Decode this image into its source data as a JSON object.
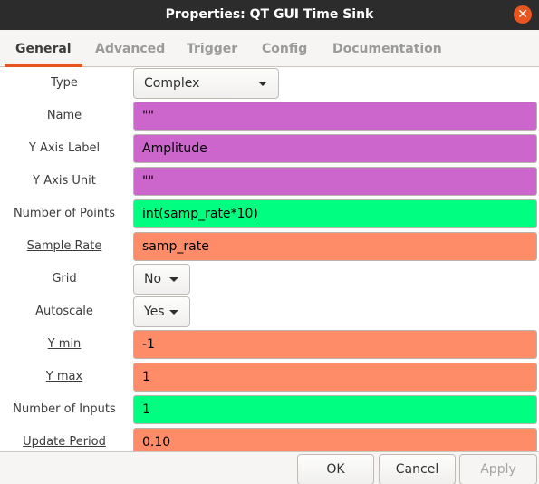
{
  "window": {
    "title": "Properties: QT GUI Time Sink"
  },
  "tabs": [
    "General",
    "Advanced",
    "Trigger",
    "Config",
    "Documentation"
  ],
  "fields": {
    "type": {
      "label": "Type",
      "value": "Complex"
    },
    "name": {
      "label": "Name",
      "value": "\"\""
    },
    "y_axis_label": {
      "label": "Y Axis Label",
      "value": "Amplitude"
    },
    "y_axis_unit": {
      "label": "Y Axis Unit",
      "value": "\"\""
    },
    "number_of_points": {
      "label": "Number of Points",
      "value": "int(samp_rate*10)"
    },
    "sample_rate": {
      "label": "Sample Rate",
      "value": "samp_rate"
    },
    "grid": {
      "label": "Grid",
      "value": "No"
    },
    "autoscale": {
      "label": "Autoscale",
      "value": "Yes"
    },
    "y_min": {
      "label": "Y min",
      "value": "-1"
    },
    "y_max": {
      "label": "Y max",
      "value": "1"
    },
    "number_of_inputs": {
      "label": "Number of Inputs",
      "value": "1"
    },
    "update_period": {
      "label": "Update Period",
      "value": "0.10"
    }
  },
  "colors": {
    "string": "#cd66cc",
    "int": "#00ff80",
    "real": "#ff8c69",
    "accent": "#e95420"
  },
  "buttons": {
    "ok": "OK",
    "cancel": "Cancel",
    "apply": "Apply"
  },
  "icons": {
    "close": "close-icon",
    "dropdown": "chevron-down-icon"
  }
}
